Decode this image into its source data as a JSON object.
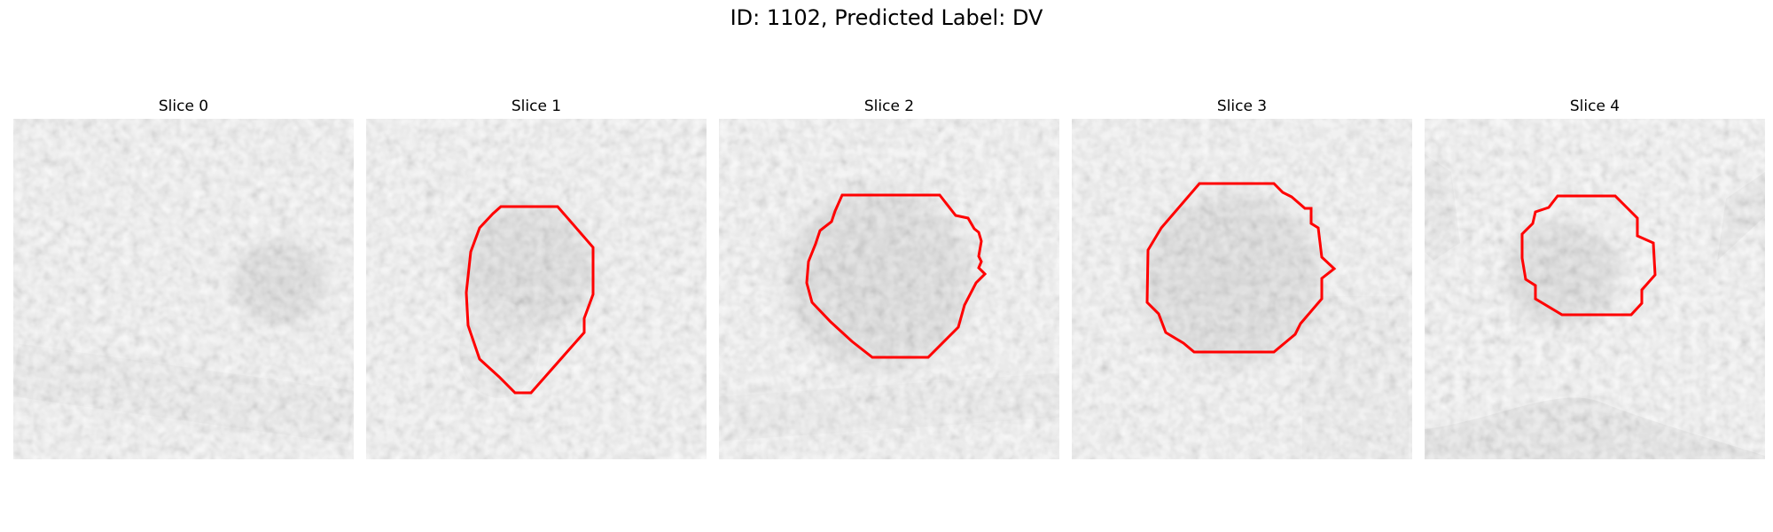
{
  "figure": {
    "title": "ID: 1102, Predicted Label: DV"
  },
  "contour_color": "#ff0000",
  "slices": [
    {
      "title": "Slice 0",
      "has_contour": false
    },
    {
      "title": "Slice 1",
      "has_contour": true
    },
    {
      "title": "Slice 2",
      "has_contour": true
    },
    {
      "title": "Slice 3",
      "has_contour": true
    },
    {
      "title": "Slice 4",
      "has_contour": true
    }
  ]
}
